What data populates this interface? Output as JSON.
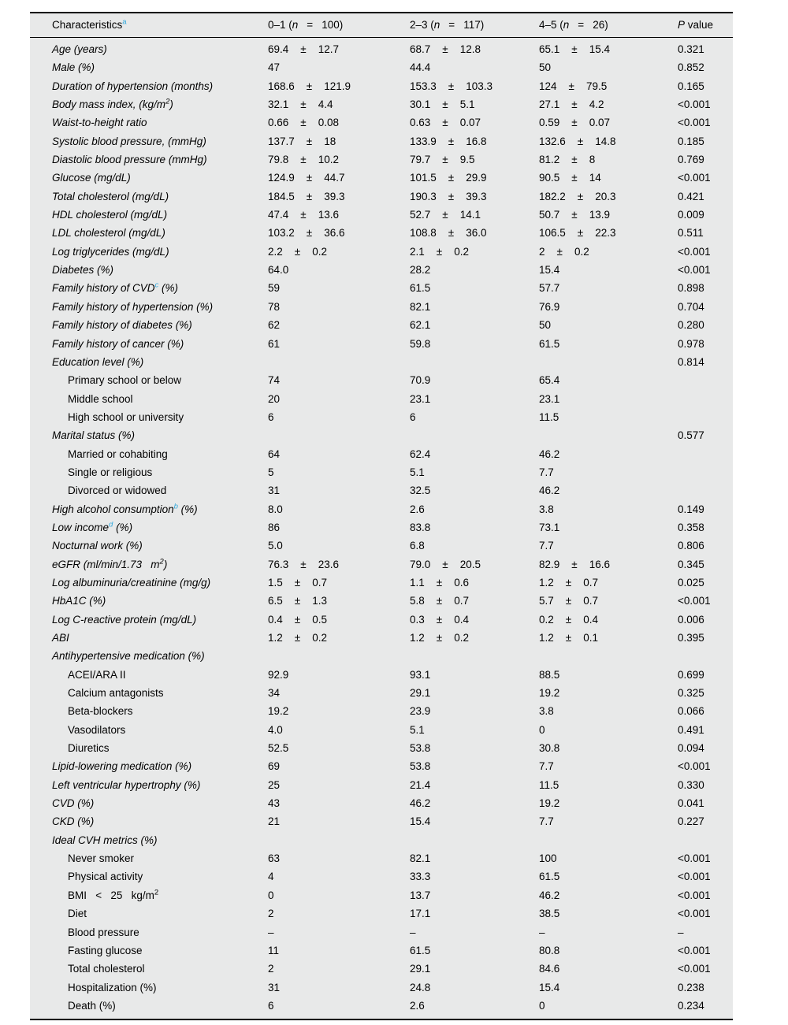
{
  "symbols": {
    "pm": "±"
  },
  "colors": {
    "table_background": "#e8e9e9",
    "border": "#000000",
    "footnote_marker": "#2fa7dc"
  },
  "header": {
    "characteristics": {
      "label": "Characteristics",
      "sup": "a"
    },
    "groups": [
      {
        "pre": "0–1 (",
        "n": "n",
        "eq": "=",
        "count": "100)"
      },
      {
        "pre": "2–3 (",
        "n": "n",
        "eq": "=",
        "count": "117)"
      },
      {
        "pre": "4–5 (",
        "n": "n",
        "eq": "=",
        "count": "26)"
      }
    ],
    "pvalue": {
      "p": "P",
      "rest": " value"
    }
  },
  "rows": [
    {
      "label": [
        {
          "t": "Age (years)"
        }
      ],
      "italic": true,
      "c1": {
        "m": "69.4",
        "s": "12.7"
      },
      "c2": {
        "m": "68.7",
        "s": "12.8"
      },
      "c3": {
        "m": "65.1",
        "s": "15.4"
      },
      "p": "0.321"
    },
    {
      "label": [
        {
          "t": "Male (%)"
        }
      ],
      "italic": true,
      "c1": "47",
      "c2": "44.4",
      "c3": "50",
      "p": "0.852"
    },
    {
      "label": [
        {
          "t": "Duration of hypertension (months)"
        }
      ],
      "italic": true,
      "c1": {
        "m": "168.6",
        "s": "121.9"
      },
      "c2": {
        "m": "153.3",
        "s": "103.3"
      },
      "c3": {
        "m": "124",
        "s": "79.5"
      },
      "p": "0.165"
    },
    {
      "label": [
        {
          "t": "Body mass index, (kg/m"
        },
        {
          "s": "2"
        },
        {
          "t": ")"
        }
      ],
      "italic": true,
      "c1": {
        "m": "32.1",
        "s": "4.4"
      },
      "c2": {
        "m": "30.1",
        "s": "5.1"
      },
      "c3": {
        "m": "27.1",
        "s": "4.2"
      },
      "p": "<0.001"
    },
    {
      "label": [
        {
          "t": "Waist-to-height ratio"
        }
      ],
      "italic": true,
      "c1": {
        "m": "0.66",
        "s": "0.08"
      },
      "c2": {
        "m": "0.63",
        "s": "0.07"
      },
      "c3": {
        "m": "0.59",
        "s": "0.07"
      },
      "p": "<0.001"
    },
    {
      "label": [
        {
          "t": "Systolic blood pressure, (mmHg)"
        }
      ],
      "italic": true,
      "c1": {
        "m": "137.7",
        "s": "18"
      },
      "c2": {
        "m": "133.9",
        "s": "16.8"
      },
      "c3": {
        "m": "132.6",
        "s": "14.8"
      },
      "p": "0.185"
    },
    {
      "label": [
        {
          "t": "Diastolic blood pressure (mmHg)"
        }
      ],
      "italic": true,
      "c1": {
        "m": "79.8",
        "s": "10.2"
      },
      "c2": {
        "m": "79.7",
        "s": "9.5"
      },
      "c3": {
        "m": "81.2",
        "s": "8"
      },
      "p": "0.769"
    },
    {
      "label": [
        {
          "t": "Glucose (mg/dL)"
        }
      ],
      "italic": true,
      "c1": {
        "m": "124.9",
        "s": "44.7"
      },
      "c2": {
        "m": "101.5",
        "s": "29.9"
      },
      "c3": {
        "m": "90.5",
        "s": "14"
      },
      "p": "<0.001"
    },
    {
      "label": [
        {
          "t": "Total cholesterol (mg/dL)"
        }
      ],
      "italic": true,
      "c1": {
        "m": "184.5",
        "s": "39.3"
      },
      "c2": {
        "m": "190.3",
        "s": "39.3"
      },
      "c3": {
        "m": "182.2",
        "s": "20.3"
      },
      "p": "0.421"
    },
    {
      "label": [
        {
          "t": "HDL cholesterol (mg/dL)"
        }
      ],
      "italic": true,
      "c1": {
        "m": "47.4",
        "s": "13.6"
      },
      "c2": {
        "m": "52.7",
        "s": "14.1"
      },
      "c3": {
        "m": "50.7",
        "s": "13.9"
      },
      "p": "0.009"
    },
    {
      "label": [
        {
          "t": "LDL cholesterol (mg/dL)"
        }
      ],
      "italic": true,
      "c1": {
        "m": "103.2",
        "s": "36.6"
      },
      "c2": {
        "m": "108.8",
        "s": "36.0"
      },
      "c3": {
        "m": "106.5",
        "s": "22.3"
      },
      "p": "0.511"
    },
    {
      "label": [
        {
          "t": "Log triglycerides (mg/dL)"
        }
      ],
      "italic": true,
      "c1": {
        "m": "2.2",
        "s": "0.2"
      },
      "c2": {
        "m": "2.1",
        "s": "0.2"
      },
      "c3": {
        "m": "2",
        "s": "0.2"
      },
      "p": "<0.001"
    },
    {
      "label": [
        {
          "t": "Diabetes (%)"
        }
      ],
      "italic": true,
      "c1": "64.0",
      "c2": "28.2",
      "c3": "15.4",
      "p": "<0.001"
    },
    {
      "label": [
        {
          "t": "Family history of CVD"
        },
        {
          "b": "c"
        },
        {
          "t": " (%)"
        }
      ],
      "italic": true,
      "c1": "59",
      "c2": "61.5",
      "c3": "57.7",
      "p": "0.898"
    },
    {
      "label": [
        {
          "t": "Family history of hypertension (%)"
        }
      ],
      "italic": true,
      "c1": "78",
      "c2": "82.1",
      "c3": "76.9",
      "p": "0.704"
    },
    {
      "label": [
        {
          "t": "Family history of diabetes (%)"
        }
      ],
      "italic": true,
      "c1": "62",
      "c2": "62.1",
      "c3": "50",
      "p": "0.280"
    },
    {
      "label": [
        {
          "t": "Family history of cancer (%)"
        }
      ],
      "italic": true,
      "c1": "61",
      "c2": "59.8",
      "c3": "61.5",
      "p": "0.978"
    },
    {
      "label": [
        {
          "t": "Education level (%)"
        }
      ],
      "italic": true,
      "p": "0.814"
    },
    {
      "label": [
        {
          "t": "Primary school or below"
        }
      ],
      "indent": true,
      "c1": "74",
      "c2": "70.9",
      "c3": "65.4"
    },
    {
      "label": [
        {
          "t": "Middle school"
        }
      ],
      "indent": true,
      "c1": "20",
      "c2": "23.1",
      "c3": "23.1"
    },
    {
      "label": [
        {
          "t": "High school or university"
        }
      ],
      "indent": true,
      "c1": "6",
      "c2": "6",
      "c3": "11.5"
    },
    {
      "label": [
        {
          "t": "Marital status (%)"
        }
      ],
      "italic": true,
      "p": "0.577"
    },
    {
      "label": [
        {
          "t": "Married or cohabiting"
        }
      ],
      "indent": true,
      "c1": "64",
      "c2": "62.4",
      "c3": "46.2"
    },
    {
      "label": [
        {
          "t": "Single or religious"
        }
      ],
      "indent": true,
      "c1": "5",
      "c2": "5.1",
      "c3": "7.7"
    },
    {
      "label": [
        {
          "t": "Divorced or widowed"
        }
      ],
      "indent": true,
      "c1": "31",
      "c2": "32.5",
      "c3": "46.2"
    },
    {
      "label": [
        {
          "t": "High alcohol consumption"
        },
        {
          "b": "b"
        },
        {
          "t": " (%)"
        }
      ],
      "italic": true,
      "c1": "8.0",
      "c2": "2.6",
      "c3": "3.8",
      "p": "0.149"
    },
    {
      "label": [
        {
          "t": "Low income"
        },
        {
          "b": "d"
        },
        {
          "t": " (%)"
        }
      ],
      "italic": true,
      "c1": "86",
      "c2": "83.8",
      "c3": "73.1",
      "p": "0.358"
    },
    {
      "label": [
        {
          "t": "Nocturnal work (%)"
        }
      ],
      "italic": true,
      "c1": "5.0",
      "c2": "6.8",
      "c3": "7.7",
      "p": "0.806"
    },
    {
      "label": [
        {
          "t": "eGFR (ml/min/1.73   m"
        },
        {
          "s": "2"
        },
        {
          "t": ")"
        }
      ],
      "italic": true,
      "c1": {
        "m": "76.3",
        "s": "23.6"
      },
      "c2": {
        "m": "79.0",
        "s": "20.5"
      },
      "c3": {
        "m": "82.9",
        "s": "16.6"
      },
      "p": "0.345"
    },
    {
      "label": [
        {
          "t": "Log albuminuria/creatinine (mg/g)"
        }
      ],
      "italic": true,
      "c1": {
        "m": "1.5",
        "s": "0.7"
      },
      "c2": {
        "m": "1.1",
        "s": "0.6"
      },
      "c3": {
        "m": "1.2",
        "s": "0.7"
      },
      "p": "0.025"
    },
    {
      "label": [
        {
          "t": "HbA1C (%)"
        }
      ],
      "italic": true,
      "c1": {
        "m": "6.5",
        "s": "1.3"
      },
      "c2": {
        "m": "5.8",
        "s": "0.7"
      },
      "c3": {
        "m": "5.7",
        "s": "0.7"
      },
      "p": "<0.001"
    },
    {
      "label": [
        {
          "t": "Log C-reactive protein (mg/dL)"
        }
      ],
      "italic": true,
      "c1": {
        "m": "0.4",
        "s": "0.5"
      },
      "c2": {
        "m": "0.3",
        "s": "0.4"
      },
      "c3": {
        "m": "0.2",
        "s": "0.4"
      },
      "p": "0.006"
    },
    {
      "label": [
        {
          "t": "ABI"
        }
      ],
      "italic": true,
      "c1": {
        "m": "1.2",
        "s": "0.2"
      },
      "c2": {
        "m": "1.2",
        "s": "0.2"
      },
      "c3": {
        "m": "1.2",
        "s": "0.1"
      },
      "p": "0.395"
    },
    {
      "label": [
        {
          "t": "Antihypertensive medication (%)"
        }
      ],
      "italic": true
    },
    {
      "label": [
        {
          "t": "ACEI/ARA II"
        }
      ],
      "indent": true,
      "c1": "92.9",
      "c2": "93.1",
      "c3": "88.5",
      "p": "0.699"
    },
    {
      "label": [
        {
          "t": "Calcium antagonists"
        }
      ],
      "indent": true,
      "c1": "34",
      "c2": "29.1",
      "c3": "19.2",
      "p": "0.325"
    },
    {
      "label": [
        {
          "t": "Beta-blockers"
        }
      ],
      "indent": true,
      "c1": "19.2",
      "c2": "23.9",
      "c3": "3.8",
      "p": "0.066"
    },
    {
      "label": [
        {
          "t": "Vasodilators"
        }
      ],
      "indent": true,
      "c1": "4.0",
      "c2": "5.1",
      "c3": "0",
      "p": "0.491"
    },
    {
      "label": [
        {
          "t": "Diuretics"
        }
      ],
      "indent": true,
      "c1": "52.5",
      "c2": "53.8",
      "c3": "30.8",
      "p": "0.094"
    },
    {
      "label": [
        {
          "t": "Lipid-lowering medication (%)"
        }
      ],
      "italic": true,
      "c1": "69",
      "c2": "53.8",
      "c3": "7.7",
      "p": "<0.001"
    },
    {
      "label": [
        {
          "t": "Left ventricular hypertrophy (%)"
        }
      ],
      "italic": true,
      "c1": "25",
      "c2": "21.4",
      "c3": "11.5",
      "p": "0.330"
    },
    {
      "label": [
        {
          "t": "CVD (%)"
        }
      ],
      "italic": true,
      "c1": "43",
      "c2": "46.2",
      "c3": "19.2",
      "p": "0.041"
    },
    {
      "label": [
        {
          "t": "CKD (%)"
        }
      ],
      "italic": true,
      "c1": "21",
      "c2": "15.4",
      "c3": "7.7",
      "p": "0.227"
    },
    {
      "label": [
        {
          "t": "Ideal CVH metrics (%)"
        }
      ],
      "italic": true
    },
    {
      "label": [
        {
          "t": "Never smoker"
        }
      ],
      "indent": true,
      "c1": "63",
      "c2": "82.1",
      "c3": "100",
      "p": "<0.001"
    },
    {
      "label": [
        {
          "t": "Physical activity"
        }
      ],
      "indent": true,
      "c1": "4",
      "c2": "33.3",
      "c3": "61.5",
      "p": "<0.001"
    },
    {
      "label": [
        {
          "t": "BMI   <   25   kg/m"
        },
        {
          "s": "2"
        }
      ],
      "indent": true,
      "c1": "0",
      "c2": "13.7",
      "c3": "46.2",
      "p": "<0.001"
    },
    {
      "label": [
        {
          "t": "Diet"
        }
      ],
      "indent": true,
      "c1": "2",
      "c2": "17.1",
      "c3": "38.5",
      "p": "<0.001"
    },
    {
      "label": [
        {
          "t": "Blood pressure"
        }
      ],
      "indent": true,
      "c1": "–",
      "c2": "–",
      "c3": "–",
      "p": "–"
    },
    {
      "label": [
        {
          "t": "Fasting glucose"
        }
      ],
      "indent": true,
      "c1": "11",
      "c2": "61.5",
      "c3": "80.8",
      "p": "<0.001"
    },
    {
      "label": [
        {
          "t": "Total cholesterol"
        }
      ],
      "indent": true,
      "c1": "2",
      "c2": "29.1",
      "c3": "84.6",
      "p": "<0.001"
    },
    {
      "label": [
        {
          "t": "Hospitalization (%)"
        }
      ],
      "indent": true,
      "c1": "31",
      "c2": "24.8",
      "c3": "15.4",
      "p": "0.238"
    },
    {
      "label": [
        {
          "t": "Death (%)"
        }
      ],
      "indent": true,
      "c1": "6",
      "c2": "2.6",
      "c3": "0",
      "p": "0.234"
    }
  ]
}
